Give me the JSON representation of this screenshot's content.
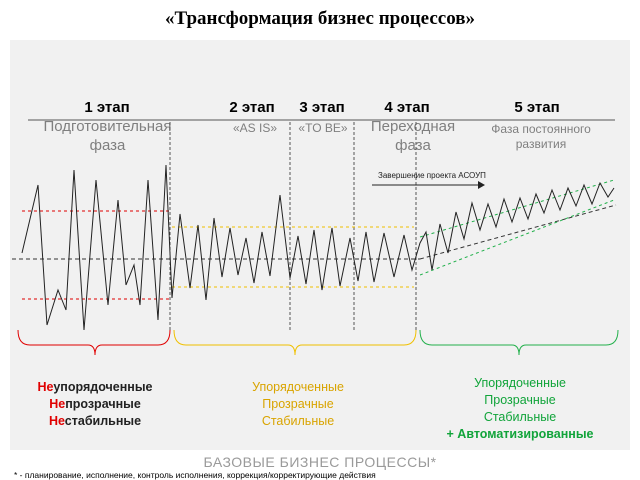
{
  "title": "«Трансформация бизнес процессов»",
  "stages": [
    {
      "number": "1 этап",
      "name": "Подготовительная фаза"
    },
    {
      "number": "2 этап",
      "name": "«AS IS»"
    },
    {
      "number": "3 этап",
      "name": "«TO BE»"
    },
    {
      "number": "4 этап",
      "name": "Переходная фаза"
    },
    {
      "number": "5 этап",
      "name": "Фаза постоянного развития"
    }
  ],
  "arrow_label": "Завершение проекта АСОУП",
  "groups": [
    {
      "prefix1": "Не",
      "rest1": "упорядоченные",
      "prefix2": "Не",
      "rest2": "прозрачные",
      "prefix3": "Не",
      "rest3": "стабильные",
      "color": "#e00000"
    },
    {
      "line1": "Упорядоченные",
      "line2": "Прозрачные",
      "line3": "Стабильные",
      "color": "#f0c000"
    },
    {
      "line1": "Упорядоченные",
      "line2": "Прозрачные",
      "line3": "Стабильные",
      "line4": "+ Автоматизированные",
      "color": "#22b04b"
    }
  ],
  "footer_title": "БАЗОВЫЕ БИЗНЕС ПРОЦЕССЫ*",
  "footnote": "* - планирование,  исполнение,  контроль  исполнения,  коррекция/корректирующие  действия",
  "colors": {
    "red": "#e00000",
    "yellow": "#f0c000",
    "green": "#22b04b",
    "grey_text": "#7f7f7f"
  }
}
